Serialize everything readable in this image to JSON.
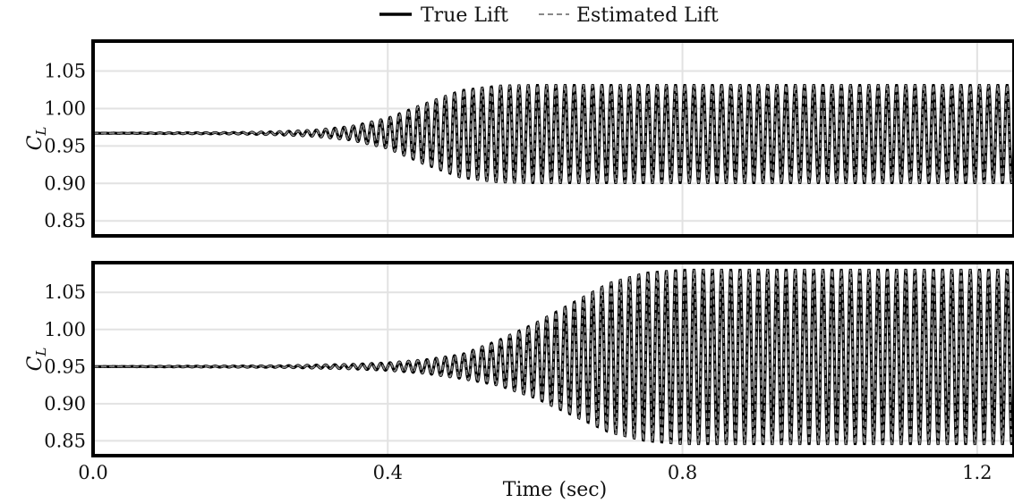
{
  "legend": {
    "placement": "top-center",
    "entries": [
      {
        "label": "True Lift",
        "style": "solid",
        "color": "#000000"
      },
      {
        "label": "Estimated Lift",
        "style": "dashed",
        "color": "#888888"
      }
    ]
  },
  "chart_data": [
    {
      "type": "line",
      "ylabel_main": "C",
      "ylabel_sub": "L",
      "xlim": [
        0.0,
        1.25
      ],
      "ylim": [
        0.83,
        1.09
      ],
      "yticks": [
        0.85,
        0.9,
        0.95,
        1.0,
        1.05
      ],
      "ytick_labels": [
        "0.85",
        "0.90",
        "0.95",
        "1.00",
        "1.05"
      ],
      "xticks": [
        0.0,
        0.4,
        0.8,
        1.2
      ],
      "grid": true,
      "frequency_hz": 80,
      "series": [
        {
          "name": "True Lift",
          "envelope": {
            "t": [
              0.0,
              0.2,
              0.25,
              0.3,
              0.35,
              0.4,
              0.45,
              0.5,
              0.55,
              0.6,
              1.25
            ],
            "mean": [
              0.967,
              0.967,
              0.967,
              0.967,
              0.967,
              0.967,
              0.966,
              0.966,
              0.966,
              0.966,
              0.966
            ],
            "amp": [
              0.0,
              0.001,
              0.002,
              0.004,
              0.009,
              0.02,
              0.04,
              0.058,
              0.064,
              0.065,
              0.065
            ]
          }
        },
        {
          "name": "Estimated Lift",
          "envelope": {
            "t": [
              0.0,
              0.2,
              0.25,
              0.3,
              0.35,
              0.4,
              0.45,
              0.5,
              0.55,
              0.6,
              1.25
            ],
            "mean": [
              0.967,
              0.967,
              0.967,
              0.967,
              0.967,
              0.967,
              0.966,
              0.966,
              0.966,
              0.966,
              0.966
            ],
            "amp": [
              0.0,
              0.001,
              0.002,
              0.004,
              0.009,
              0.02,
              0.04,
              0.058,
              0.064,
              0.065,
              0.065
            ]
          }
        }
      ]
    },
    {
      "type": "line",
      "ylabel_main": "C",
      "ylabel_sub": "L",
      "xlabel": "Time (sec)",
      "xlim": [
        0.0,
        1.25
      ],
      "ylim": [
        0.83,
        1.09
      ],
      "yticks": [
        0.85,
        0.9,
        0.95,
        1.0,
        1.05
      ],
      "ytick_labels": [
        "0.85",
        "0.90",
        "0.95",
        "1.00",
        "1.05"
      ],
      "xticks": [
        0.0,
        0.4,
        0.8,
        1.2
      ],
      "xtick_labels": [
        "0.0",
        "0.4",
        "0.8",
        "1.2"
      ],
      "grid": true,
      "frequency_hz": 80,
      "series": [
        {
          "name": "True Lift",
          "envelope": {
            "t": [
              0.0,
              0.25,
              0.3,
              0.35,
              0.4,
              0.45,
              0.5,
              0.55,
              0.6,
              0.65,
              0.7,
              0.75,
              0.8,
              1.25
            ],
            "mean": [
              0.95,
              0.95,
              0.95,
              0.95,
              0.95,
              0.95,
              0.95,
              0.955,
              0.958,
              0.96,
              0.962,
              0.963,
              0.963,
              0.963
            ],
            "amp": [
              0.0,
              0.001,
              0.002,
              0.003,
              0.005,
              0.009,
              0.016,
              0.03,
              0.05,
              0.075,
              0.1,
              0.113,
              0.117,
              0.117
            ]
          }
        },
        {
          "name": "Estimated Lift",
          "envelope": {
            "t": [
              0.0,
              0.25,
              0.3,
              0.35,
              0.4,
              0.45,
              0.5,
              0.55,
              0.6,
              0.65,
              0.7,
              0.75,
              0.8,
              1.25
            ],
            "mean": [
              0.95,
              0.95,
              0.95,
              0.95,
              0.95,
              0.95,
              0.95,
              0.955,
              0.958,
              0.96,
              0.962,
              0.963,
              0.963,
              0.963
            ],
            "amp": [
              0.0,
              0.001,
              0.002,
              0.003,
              0.005,
              0.009,
              0.016,
              0.03,
              0.05,
              0.075,
              0.1,
              0.113,
              0.117,
              0.117
            ]
          }
        }
      ]
    }
  ]
}
